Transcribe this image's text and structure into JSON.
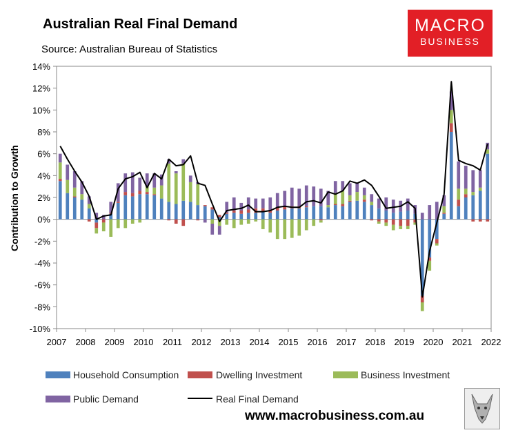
{
  "header": {
    "title": "Australian Real Final Demand",
    "source": "Source: Australian Bureau of Statistics"
  },
  "logo": {
    "line1": "MACRO",
    "line2": "BUSINESS"
  },
  "footer": {
    "url": "www.macrobusiness.com.au"
  },
  "colors": {
    "household": "#4f81bd",
    "dwelling": "#c0504d",
    "business": "#9bbb59",
    "public": "#8064a2",
    "rfd": "#000000",
    "logo": "#e21f26"
  },
  "chart_data": {
    "type": "bar",
    "stacked": true,
    "ylabel": "Contribution to Growth",
    "ylim": [
      -10,
      14
    ],
    "y_ticks": [
      "14%",
      "12%",
      "10%",
      "8%",
      "6%",
      "4%",
      "2%",
      "0%",
      "-2%",
      "-4%",
      "-6%",
      "-8%",
      "-10%"
    ],
    "x_ticks": [
      "2007",
      "2008",
      "2009",
      "2010",
      "2011",
      "2012",
      "2013",
      "2014",
      "2015",
      "2016",
      "2017",
      "2018",
      "2019",
      "2020",
      "2021",
      "2022"
    ],
    "x_start": 2007,
    "periods_per_year": 4,
    "series": [
      {
        "name": "Household Consumption",
        "key": "household",
        "values": [
          3.5,
          2.4,
          2.0,
          1.8,
          1.0,
          -0.3,
          0.0,
          0.5,
          1.5,
          2.2,
          2.1,
          2.3,
          2.3,
          2.2,
          1.9,
          1.6,
          1.4,
          1.7,
          1.6,
          1.3,
          1.2,
          0.9,
          0.2,
          0.5,
          0.6,
          0.5,
          0.6,
          0.6,
          0.7,
          0.6,
          0.8,
          0.9,
          1.0,
          1.0,
          1.1,
          1.2,
          1.2,
          1.1,
          1.3,
          1.2,
          1.6,
          1.7,
          1.6,
          1.3,
          1.0,
          0.8,
          0.6,
          0.7,
          0.8,
          0.5,
          -7.0,
          -3.5,
          -1.8,
          0.5,
          8.0,
          1.2,
          2.0,
          2.2,
          2.6,
          6.0
        ]
      },
      {
        "name": "Dwelling Investment",
        "key": "dwelling",
        "values": [
          0.2,
          0.0,
          0.1,
          0.0,
          -0.2,
          -0.5,
          -0.3,
          0.1,
          0.1,
          0.3,
          0.3,
          0.3,
          0.2,
          0.1,
          0.0,
          -0.1,
          -0.4,
          -0.6,
          0.0,
          -0.1,
          0.1,
          0.2,
          0.2,
          0.1,
          0.2,
          0.3,
          0.3,
          0.4,
          0.3,
          0.2,
          0.3,
          0.3,
          0.2,
          0.2,
          0.1,
          0.0,
          -0.1,
          0.0,
          0.1,
          0.2,
          0.1,
          0.0,
          0.2,
          -0.1,
          -0.2,
          -0.3,
          -0.5,
          -0.6,
          -0.6,
          -0.3,
          -0.6,
          -0.3,
          -0.4,
          0.1,
          0.8,
          0.6,
          0.3,
          -0.2,
          -0.2,
          -0.2
        ]
      },
      {
        "name": "Business Investment",
        "key": "business",
        "values": [
          1.5,
          1.2,
          0.8,
          0.5,
          0.4,
          -0.5,
          -0.8,
          -1.6,
          -0.8,
          -0.8,
          -0.4,
          -0.3,
          0.5,
          0.6,
          1.2,
          3.5,
          2.8,
          3.4,
          1.8,
          1.9,
          0.0,
          -0.4,
          -0.6,
          -0.5,
          -0.8,
          -0.5,
          -0.4,
          -0.2,
          -0.9,
          -1.2,
          -1.8,
          -1.8,
          -1.7,
          -1.5,
          -1.0,
          -0.6,
          -0.2,
          0.2,
          1.0,
          1.2,
          0.5,
          0.8,
          0.4,
          0.3,
          -0.2,
          -0.3,
          -0.5,
          -0.3,
          -0.3,
          -0.2,
          -0.8,
          -0.9,
          -0.2,
          0.6,
          1.2,
          1.0,
          0.5,
          0.3,
          0.3,
          0.4
        ]
      },
      {
        "name": "Public Demand",
        "key": "public",
        "values": [
          0.8,
          1.4,
          1.5,
          1.2,
          0.7,
          0.6,
          0.4,
          1.0,
          1.7,
          1.7,
          1.9,
          1.2,
          1.2,
          1.3,
          1.0,
          0.4,
          0.2,
          0.4,
          0.6,
          0.2,
          -0.3,
          -1.0,
          -0.8,
          1.0,
          1.2,
          0.7,
          1.1,
          0.9,
          0.9,
          1.2,
          1.3,
          1.4,
          1.7,
          1.6,
          1.9,
          1.8,
          1.6,
          1.3,
          1.1,
          0.9,
          1.1,
          0.8,
          0.7,
          0.7,
          0.9,
          1.2,
          1.2,
          1.0,
          1.1,
          0.8,
          0.6,
          1.3,
          1.6,
          1.0,
          1.7,
          2.5,
          2.1,
          2.0,
          1.6,
          0.6
        ]
      },
      {
        "name": "Real Final Demand",
        "key": "rfd",
        "type": "line",
        "values": [
          6.7,
          5.5,
          4.4,
          3.4,
          2.1,
          0.0,
          0.3,
          0.4,
          2.8,
          3.7,
          3.9,
          4.3,
          2.9,
          4.2,
          3.7,
          5.5,
          4.9,
          5.0,
          5.8,
          3.3,
          3.1,
          1.4,
          -0.2,
          0.8,
          0.9,
          1.0,
          1.3,
          0.7,
          0.7,
          0.8,
          1.1,
          1.2,
          1.1,
          1.1,
          1.6,
          1.7,
          1.5,
          2.5,
          2.3,
          2.6,
          3.5,
          3.3,
          3.6,
          3.1,
          2.1,
          1.0,
          1.1,
          1.2,
          1.6,
          1.0,
          -7.1,
          -2.9,
          -0.3,
          2.3,
          12.6,
          5.4,
          5.1,
          4.9,
          4.5,
          6.9
        ]
      }
    ]
  }
}
